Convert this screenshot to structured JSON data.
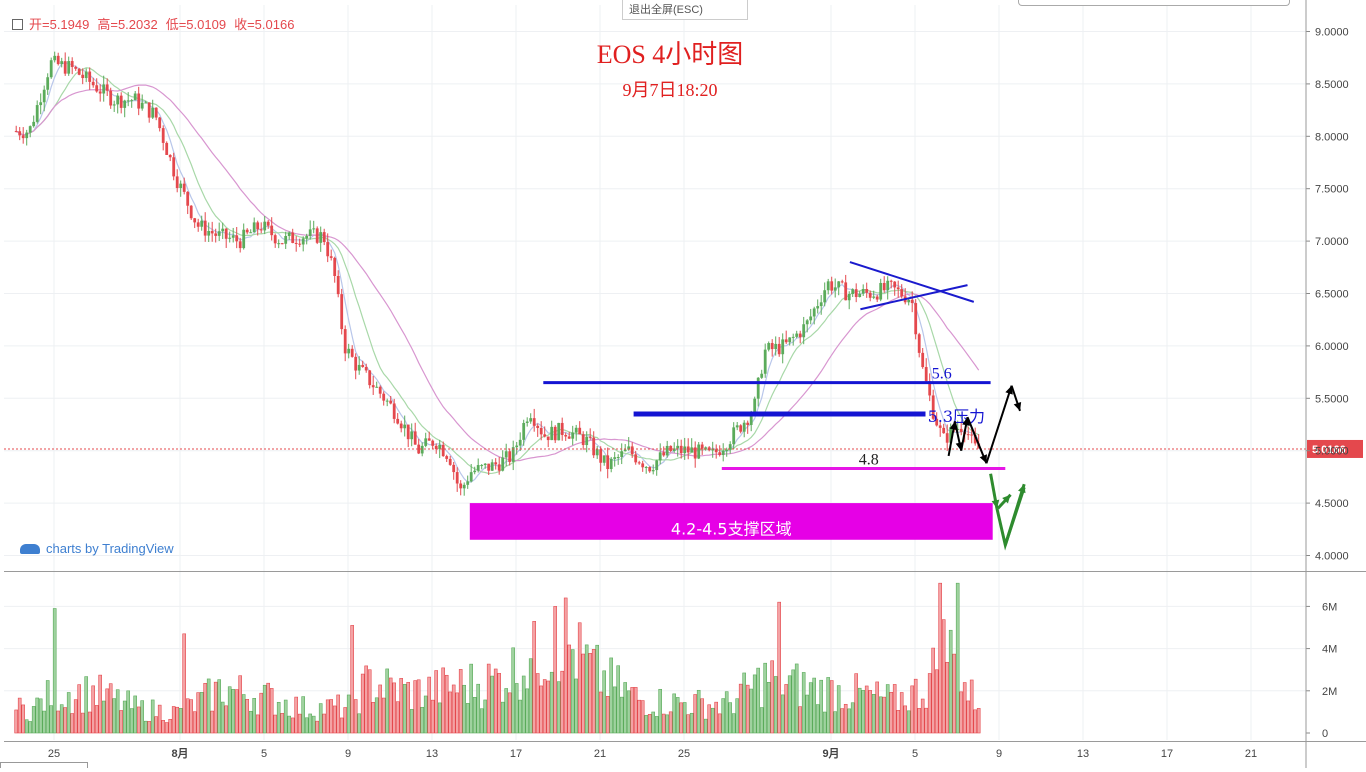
{
  "ohlc": {
    "open": "开=5.1949",
    "high": "高=5.2032",
    "low": "低=5.0109",
    "close": "收=5.0166"
  },
  "exit_fullscreen": "退出全屏(ESC)",
  "watermark": "charts by TradingView",
  "chart_data": {
    "type": "candlestick",
    "title": "EOS 4小时图",
    "subtitle": "9月7日18:20",
    "price_axis": {
      "ticks": [
        9.0,
        8.5,
        8.0,
        7.5,
        7.0,
        6.5,
        6.0,
        5.5,
        5.0,
        4.5,
        4.0
      ],
      "tick_labels": [
        "9.0000",
        "8.5000",
        "8.0000",
        "7.5000",
        "7.0000",
        "6.5000",
        "6.0000",
        "5.5000",
        "5.0000",
        "4.5000",
        "4.0000"
      ],
      "current_price": 5.0166,
      "current_label": "5.0166"
    },
    "volume_axis": {
      "ticks": [
        6,
        4,
        2,
        0
      ],
      "tick_labels": [
        "6M",
        "4M",
        "2M",
        "0"
      ]
    },
    "time_axis": {
      "labels": [
        "25",
        "8月",
        "5",
        "9",
        "13",
        "17",
        "21",
        "25",
        "9月",
        "5",
        "9",
        "13",
        "17",
        "21"
      ],
      "date_index": [
        -6,
        0,
        4,
        8,
        12,
        16,
        20,
        24,
        31,
        35,
        39,
        43,
        47,
        51
      ]
    },
    "price_path": [
      [
        -7,
        8.05
      ],
      [
        -6,
        8.7
      ],
      [
        -5,
        8.65
      ],
      [
        -4,
        8.5
      ],
      [
        -3,
        8.35
      ],
      [
        -2,
        8.35
      ],
      [
        -1,
        8.2
      ],
      [
        0,
        7.6
      ],
      [
        1,
        7.15
      ],
      [
        2,
        7.05
      ],
      [
        3,
        7.0
      ],
      [
        4,
        7.15
      ],
      [
        5,
        7.0
      ],
      [
        6,
        7.05
      ],
      [
        7,
        7.05
      ],
      [
        7.5,
        6.7
      ],
      [
        8,
        6.0
      ],
      [
        8.6,
        5.8
      ],
      [
        9.5,
        5.6
      ],
      [
        10.5,
        5.35
      ],
      [
        11.5,
        5.0
      ],
      [
        12.3,
        5.1
      ],
      [
        13,
        4.95
      ],
      [
        13.5,
        4.6
      ],
      [
        14,
        4.8
      ],
      [
        15,
        4.85
      ],
      [
        16,
        4.95
      ],
      [
        16.8,
        5.4
      ],
      [
        17.5,
        5.15
      ],
      [
        18.5,
        5.2
      ],
      [
        19.5,
        5.1
      ],
      [
        20.5,
        4.85
      ],
      [
        21.5,
        5.0
      ],
      [
        22.5,
        4.85
      ],
      [
        23.5,
        5.0
      ],
      [
        24.5,
        5.0
      ],
      [
        25.5,
        4.95
      ],
      [
        26.5,
        5.15
      ],
      [
        27.5,
        5.4
      ],
      [
        28,
        5.95
      ],
      [
        29,
        6.0
      ],
      [
        30,
        6.2
      ],
      [
        31,
        6.6
      ],
      [
        32,
        6.5
      ],
      [
        33,
        6.5
      ],
      [
        34,
        6.55
      ],
      [
        35,
        6.45
      ],
      [
        35.5,
        5.8
      ],
      [
        36,
        5.4
      ],
      [
        36.5,
        5.1
      ],
      [
        37,
        5.2
      ],
      [
        37.5,
        5.25
      ],
      [
        38,
        5.02
      ]
    ],
    "volume_path": [
      [
        -7,
        1.2
      ],
      [
        -6,
        2.0
      ],
      [
        -4,
        2.0
      ],
      [
        -2,
        1.2
      ],
      [
        0,
        1.0
      ],
      [
        2,
        2.2
      ],
      [
        4,
        1.8
      ],
      [
        6,
        1.2
      ],
      [
        8,
        1.3
      ],
      [
        9,
        2.5
      ],
      [
        11,
        2.0
      ],
      [
        13,
        2.3
      ],
      [
        15,
        2.6
      ],
      [
        17,
        3.8
      ],
      [
        18,
        4.8
      ],
      [
        20,
        2.8
      ],
      [
        22,
        1.6
      ],
      [
        24,
        1.5
      ],
      [
        26,
        1.4
      ],
      [
        28,
        2.8
      ],
      [
        30,
        2.2
      ],
      [
        32,
        2.0
      ],
      [
        34,
        1.6
      ],
      [
        35.5,
        2.2
      ],
      [
        36.5,
        4.5
      ],
      [
        37.5,
        2.0
      ],
      [
        38,
        1.6
      ]
    ],
    "volume_spikes": [
      [
        -6,
        5.9
      ],
      [
        0.2,
        4.7
      ],
      [
        8.2,
        5.1
      ],
      [
        17.8,
        6.0
      ],
      [
        18.3,
        6.4
      ],
      [
        28.5,
        6.2
      ],
      [
        36.2,
        7.1
      ],
      [
        37,
        7.1
      ]
    ],
    "moving_averages": [
      {
        "color": "#b8c6ea",
        "period": 5
      },
      {
        "color": "#a8d8a8",
        "period": 12
      },
      {
        "color": "#d896d0",
        "period": 30
      }
    ],
    "annotations": {
      "triangle_color": "#1a1acd",
      "resistance_56": {
        "price": 5.65,
        "label": "5.6",
        "color": "#1414d2"
      },
      "resistance_53": {
        "price": 5.35,
        "label": "5.3压力",
        "color": "#1414d2"
      },
      "support_48": {
        "price": 4.83,
        "label": "4.8",
        "color": "#e616e6"
      },
      "support_zone": {
        "from": 4.15,
        "to": 4.5,
        "label": "4.2-4.5支撑区域",
        "color": "#e600e6"
      },
      "black_path_color": "#000000",
      "green_path_color": "#2e8b2e"
    },
    "candle_up_color": "#5bab5b",
    "candle_down_color": "#e4484d"
  }
}
